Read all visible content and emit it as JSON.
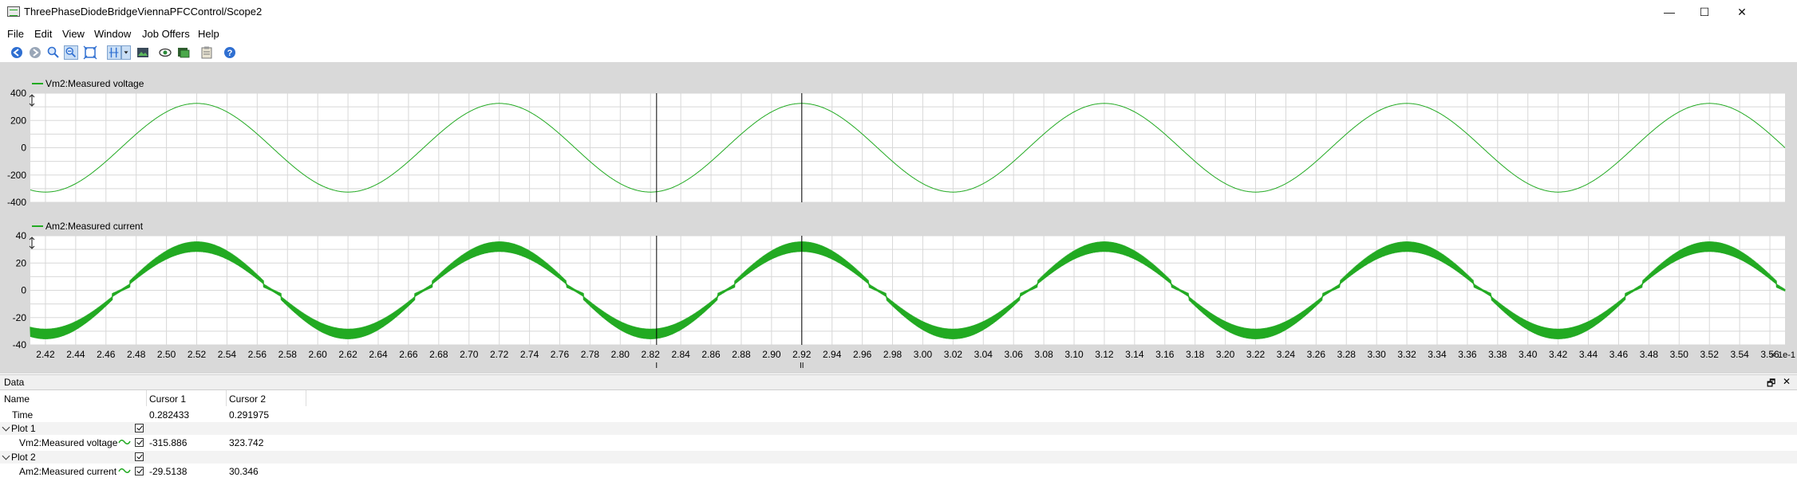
{
  "window": {
    "title": "ThreePhaseDiodeBridgeViennaPFCControl/Scope2",
    "minimize_glyph": "—",
    "maximize_glyph": "☐",
    "close_glyph": "✕"
  },
  "menu": [
    "File",
    "Edit",
    "View",
    "Window",
    "Job Offers",
    "Help"
  ],
  "toolbar_icons": [
    "back-icon",
    "forward-icon",
    "zoom-icon",
    "zoom-out-icon",
    "fit-icon",
    "cursor-icon",
    "dropdown-icon",
    "image-icon",
    "eye-icon",
    "export-icon",
    "clipboard-icon",
    "help-icon"
  ],
  "colors": {
    "trace": "#22aa22",
    "plot_bg": "#ffffff",
    "grid": "#d8d8d8",
    "panel": "#d9d9d9"
  },
  "plots": [
    {
      "legend": "Vm2:Measured voltage",
      "yticks": [
        "400",
        "200",
        "0",
        "-200",
        "-400"
      ]
    },
    {
      "legend": "Am2:Measured current",
      "yticks": [
        "40",
        "20",
        "0",
        "-20",
        "-40"
      ]
    }
  ],
  "xaxis": {
    "ticks": [
      "2.42",
      "2.44",
      "2.46",
      "2.48",
      "2.50",
      "2.52",
      "2.54",
      "2.56",
      "2.58",
      "2.60",
      "2.62",
      "2.64",
      "2.66",
      "2.68",
      "2.70",
      "2.72",
      "2.74",
      "2.76",
      "2.78",
      "2.80",
      "2.82",
      "2.84",
      "2.86",
      "2.88",
      "2.90",
      "2.92",
      "2.94",
      "2.96",
      "2.98",
      "3.00",
      "3.02",
      "3.04",
      "3.06",
      "3.08",
      "3.10",
      "3.12",
      "3.14",
      "3.16",
      "3.18",
      "3.20",
      "3.22",
      "3.24",
      "3.26",
      "3.28",
      "3.30",
      "3.32",
      "3.34",
      "3.36",
      "3.38",
      "3.40",
      "3.42",
      "3.44",
      "3.46",
      "3.48",
      "3.50",
      "3.52",
      "3.54",
      "3.56"
    ],
    "scale_label": "× 1e-1",
    "cursor1_label": "I",
    "cursor2_label": "II"
  },
  "chart_data": [
    {
      "type": "line",
      "series": [
        {
          "name": "Vm2:Measured voltage",
          "amplitude": 325,
          "frequency_per_unit": 50,
          "peak_at": 2.52
        }
      ],
      "xlim": [
        2.41,
        3.57
      ],
      "ylim": [
        -400,
        400
      ],
      "cursors": [
        2.824,
        2.92
      ]
    },
    {
      "type": "line",
      "series": [
        {
          "name": "Am2:Measured current",
          "amplitude": 32,
          "frequency_per_unit": 50,
          "peak_at": 2.52
        }
      ],
      "xlim": [
        2.41,
        3.57
      ],
      "ylim": [
        -40,
        40
      ],
      "cursors": [
        2.824,
        2.92
      ]
    }
  ],
  "data_panel": {
    "title": "Data",
    "restore_glyph": "🗗",
    "close_glyph": "✕",
    "headers": {
      "name": "Name",
      "cursor1": "Cursor 1",
      "cursor2": "Cursor 2"
    },
    "time": {
      "label": "Time",
      "c1": "0.282433",
      "c2": "0.291975"
    },
    "plot1": {
      "label": "Plot 1",
      "signal": "Vm2:Measured voltage",
      "c1": "-315.886",
      "c2": "323.742"
    },
    "plot2": {
      "label": "Plot 2",
      "signal": "Am2:Measured current",
      "c1": "-29.5138",
      "c2": "30.346"
    }
  }
}
